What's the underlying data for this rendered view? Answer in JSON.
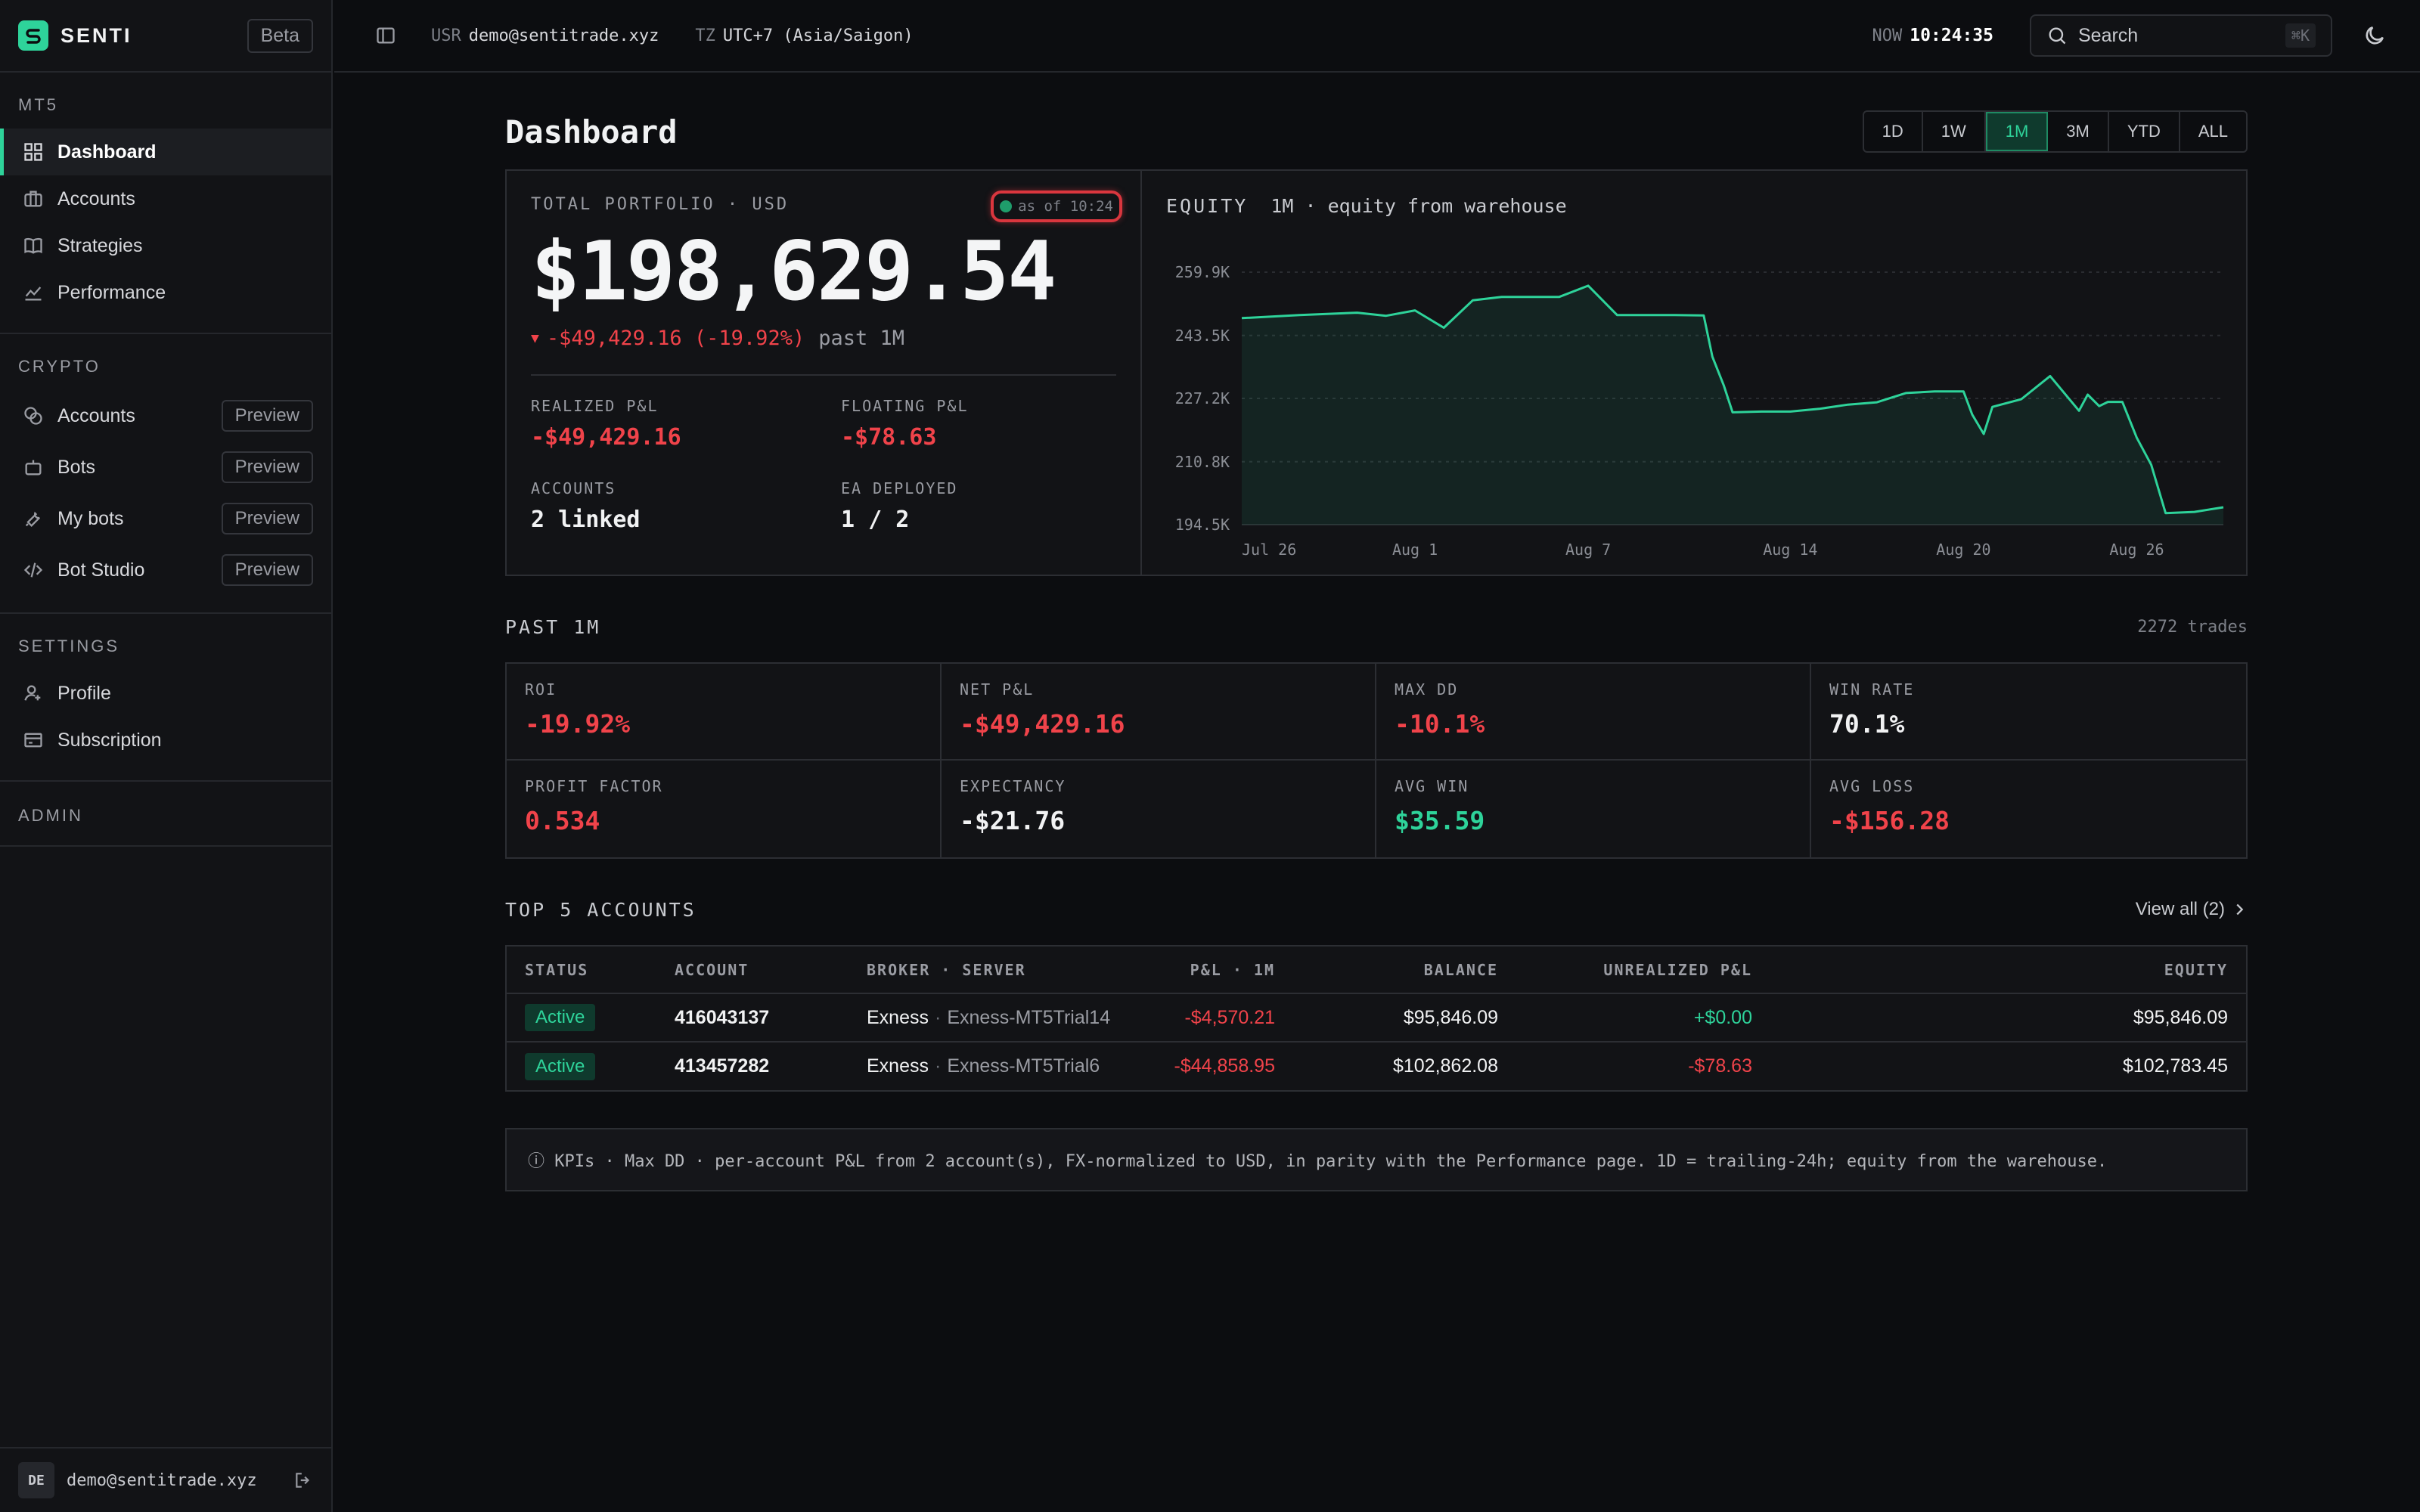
{
  "brand": {
    "name": "SENTI",
    "badge": "Beta"
  },
  "sidebar": {
    "mt5": {
      "title": "MT5",
      "items": [
        {
          "label": "Dashboard",
          "icon": "grid-icon"
        },
        {
          "label": "Accounts",
          "icon": "briefcase-icon"
        },
        {
          "label": "Strategies",
          "icon": "book-icon"
        },
        {
          "label": "Performance",
          "icon": "line-chart-icon"
        }
      ]
    },
    "crypto": {
      "title": "CRYPTO",
      "items": [
        {
          "label": "Accounts",
          "badge": "Preview",
          "icon": "coins-icon"
        },
        {
          "label": "Bots",
          "badge": "Preview",
          "icon": "bot-icon"
        },
        {
          "label": "My bots",
          "badge": "Preview",
          "icon": "wrench-icon"
        },
        {
          "label": "Bot Studio",
          "badge": "Preview",
          "icon": "code-icon"
        }
      ]
    },
    "settings": {
      "title": "SETTINGS",
      "items": [
        {
          "label": "Profile",
          "icon": "user-icon"
        },
        {
          "label": "Subscription",
          "icon": "card-icon"
        }
      ]
    },
    "admin": {
      "title": "ADMIN"
    },
    "user": {
      "initials": "DE",
      "email": "demo@sentitrade.xyz"
    }
  },
  "header": {
    "usr_label": "USR",
    "usr_value": "demo@sentitrade.xyz",
    "tz_label": "TZ",
    "tz_value": "UTC+7 (Asia/Saigon)",
    "now_label": "NOW",
    "now_value": "10:24:35",
    "search_placeholder": "Search",
    "search_shortcut": "⌘K"
  },
  "main": {
    "title": "Dashboard",
    "ranges": [
      "1D",
      "1W",
      "1M",
      "3M",
      "YTD",
      "ALL"
    ],
    "selected_range": "1M",
    "portfolio": {
      "label": "TOTAL PORTFOLIO · USD",
      "as_of": "as of 10:24",
      "total": "$198,629.54",
      "delta": "-$49,429.16 (-19.92%)",
      "delta_period": "past 1M",
      "realized_label": "REALIZED P&L",
      "realized_value": "-$49,429.16",
      "floating_label": "FLOATING P&L",
      "floating_value": "-$78.63",
      "accounts_label": "ACCOUNTS",
      "accounts_value": "2 linked",
      "ea_label": "EA DEPLOYED",
      "ea_value": "1 / 2"
    },
    "equity": {
      "title": "EQUITY",
      "subtitle": "1M · equity from warehouse"
    },
    "past": {
      "title": "PAST 1M",
      "trades": "2272 trades",
      "kpis": [
        {
          "label": "ROI",
          "value": "-19.92%",
          "tone": "red"
        },
        {
          "label": "NET P&L",
          "value": "-$49,429.16",
          "tone": "red"
        },
        {
          "label": "MAX DD",
          "value": "-10.1%",
          "tone": "red"
        },
        {
          "label": "WIN RATE",
          "value": "70.1%",
          "tone": "white"
        },
        {
          "label": "PROFIT FACTOR",
          "value": "0.534",
          "tone": "red"
        },
        {
          "label": "EXPECTANCY",
          "value": "-$21.76",
          "tone": "white"
        },
        {
          "label": "AVG WIN",
          "value": "$35.59",
          "tone": "green"
        },
        {
          "label": "AVG LOSS",
          "value": "-$156.28",
          "tone": "red"
        }
      ]
    },
    "accounts": {
      "title": "TOP 5 ACCOUNTS",
      "view_all": "View all (2)",
      "columns": [
        "STATUS",
        "ACCOUNT",
        "BROKER · SERVER",
        "P&L · 1M",
        "BALANCE",
        "UNREALIZED P&L",
        "EQUITY"
      ],
      "rows": [
        {
          "status": "Active",
          "account": "416043137",
          "broker": "Exness",
          "server": "Exness-MT5Trial14",
          "pnl": "-$4,570.21",
          "balance": "$95,846.09",
          "unrealized": "+$0.00",
          "equity": "$95,846.09"
        },
        {
          "status": "Active",
          "account": "413457282",
          "broker": "Exness",
          "server": "Exness-MT5Trial6",
          "pnl": "-$44,858.95",
          "balance": "$102,862.08",
          "unrealized": "-$78.63",
          "equity": "$102,783.45"
        }
      ]
    },
    "note": "ⓘ KPIs · Max DD · per-account P&L from 2 account(s), FX-normalized to USD, in parity with the Performance page. 1D = trailing-24h; equity from the warehouse."
  },
  "chart_data": {
    "type": "area",
    "title": "EQUITY",
    "y_ticks": [
      194500,
      210800,
      227200,
      243500,
      259900
    ],
    "y_tick_labels": [
      "194.5K",
      "210.8K",
      "227.2K",
      "243.5K",
      "259.9K"
    ],
    "x_tick_labels": [
      "Jul 26",
      "Aug 1",
      "Aug 7",
      "Aug 14",
      "Aug 20",
      "Aug 26"
    ],
    "x_tick_days": [
      0,
      6,
      12,
      19,
      25,
      31
    ],
    "ylim": [
      194500,
      259900
    ],
    "xlim_days": [
      0,
      34
    ],
    "grid": true,
    "color": "#2ed39a",
    "series": [
      {
        "x": [
          0,
          2,
          4,
          5,
          6,
          7,
          8,
          9,
          10,
          11,
          12,
          13,
          14,
          15,
          16,
          16.3,
          16.7,
          17,
          18,
          18.5,
          19,
          20,
          21,
          22,
          23,
          24,
          25,
          25.3,
          25.7,
          26,
          27,
          28,
          29,
          29.3,
          29.7,
          30,
          30.5,
          31,
          31.5,
          32,
          33,
          34
        ],
        "y": [
          248000,
          248800,
          249400,
          248600,
          250000,
          245500,
          252600,
          253500,
          253500,
          253500,
          256400,
          248800,
          248800,
          248800,
          248700,
          238000,
          230500,
          223600,
          223800,
          223800,
          223800,
          224500,
          225600,
          226200,
          228600,
          229000,
          229000,
          223000,
          218000,
          225000,
          227000,
          233000,
          224000,
          228200,
          225200,
          226300,
          226300,
          217000,
          210000,
          197500,
          197800,
          199000
        ]
      }
    ]
  }
}
